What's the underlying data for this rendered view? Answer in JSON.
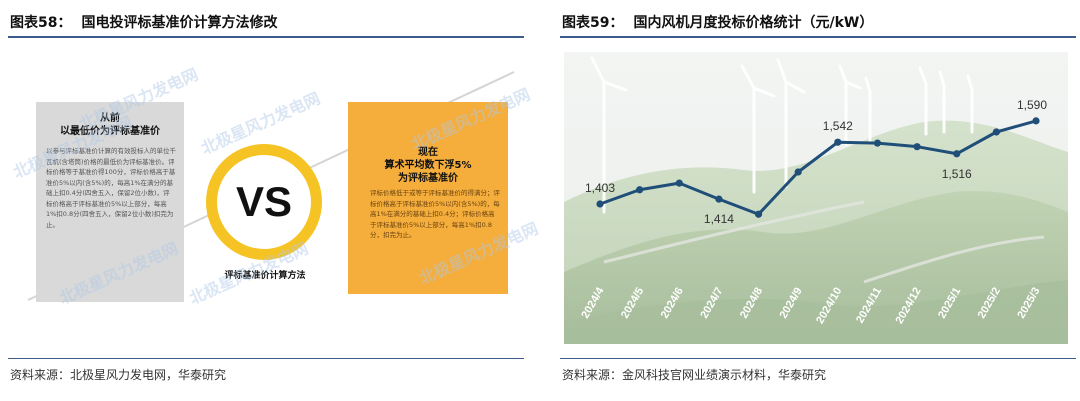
{
  "left_figure": {
    "number": "图表58：",
    "title": "国电投评标基准价计算方法修改",
    "source": "资料来源：北极星风力发电网，华泰研究",
    "before_head": "从前\n以最低价为评标基准价",
    "before_body": "以参与评标基准价计算的有效投标人的单位千瓦机(含塔筒)价格的最低价为评标基准价。评标价格等于基准价得100分，评标价格高于基准价5%以内(含5%)的，每高1%在满分的基础上扣0.4分(四舍五入，保留2位小数)，评标价格高于评标基准价5%以上部分，每高1%扣0.8分(四舍五入，保留2位小数)扣完为止。",
    "after_head": "现在\n算术平均数下浮5%\n为评标基准价",
    "after_body": "评标价格低于或等于评标基准价的得满分；评标价格高于评标基准价5%以内(含5%)的，每高1%在满分的基础上扣0.4分；评标价格高于评标基准价5%以上部分，每高1%扣0.8分，扣完为止。",
    "vs_label": "VS",
    "caption": "评标基准价计算方法",
    "watermark": "北极星风力发电网",
    "colors": {
      "before_box": "#d9d9d9",
      "after_box": "#f5ad3b",
      "vs_ring": "#f6c324"
    }
  },
  "right_figure": {
    "number": "图表59：",
    "title": "国内风机月度投标价格统计（元/kW）",
    "source": "资料来源：金风科技官网业绩演示材料，华泰研究",
    "line_color": "#1f4e79"
  },
  "chart_data": {
    "type": "line",
    "title": "国内风机月度投标价格统计（元/kW）",
    "xlabel": "",
    "ylabel": "",
    "x": [
      "2024/4",
      "2024/5",
      "2024/6",
      "2024/7",
      "2024/8",
      "2024/9",
      "2024/10",
      "2024/11",
      "2024/12",
      "2025/1",
      "2025/2",
      "2025/3"
    ],
    "series": [
      {
        "name": "",
        "values": [
          1403,
          1435,
          1450,
          1414,
          1380,
          1475,
          1542,
          1540,
          1532,
          1516,
          1565,
          1590
        ]
      }
    ],
    "data_labels": [
      {
        "index": 0,
        "text": "1,403",
        "position": "above"
      },
      {
        "index": 3,
        "text": "1,414",
        "position": "below"
      },
      {
        "index": 6,
        "text": "1,542",
        "position": "above"
      },
      {
        "index": 9,
        "text": "1,516",
        "position": "below"
      },
      {
        "index": 11,
        "text": "1,590",
        "position": "above"
      }
    ],
    "ylim": [
      1250,
      1700
    ],
    "grid": false,
    "legend": "none",
    "background": "photo of wind turbines on green hills"
  }
}
